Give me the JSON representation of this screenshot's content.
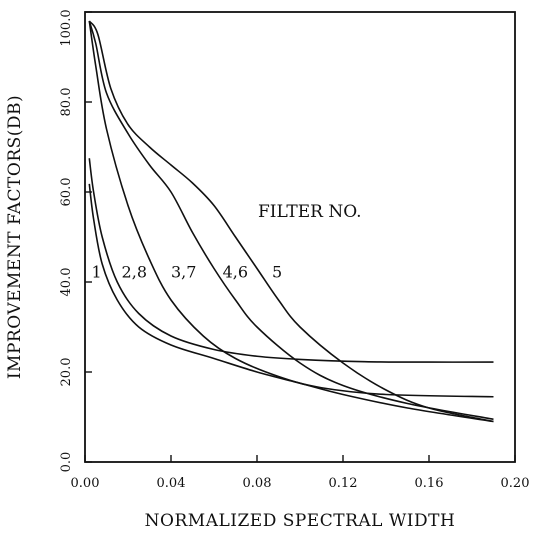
{
  "chart_data": {
    "type": "line",
    "title": "",
    "xlabel": "NORMALIZED SPECTRAL WIDTH",
    "ylabel": "IMPROVEMENT FACTORS(DB)",
    "xlim": [
      0.0,
      0.2
    ],
    "ylim": [
      0.0,
      100.0
    ],
    "x_ticks": [
      "0.00",
      "0.04",
      "0.08",
      "0.12",
      "0.16",
      "0.20"
    ],
    "x_tick_values": [
      0.0,
      0.04,
      0.08,
      0.12,
      0.16,
      0.2
    ],
    "y_ticks": [
      "0.0",
      "20.0",
      "40.0",
      "60.0",
      "80.0",
      "100.0"
    ],
    "y_tick_values": [
      0,
      20,
      40,
      60,
      80,
      100
    ],
    "grid": false,
    "annotation": "FILTER NO.",
    "curve_labels": [
      {
        "text": "1",
        "x": 0.003,
        "y": 41.0
      },
      {
        "text": "2,8",
        "x": 0.017,
        "y": 41.0
      },
      {
        "text": "3,7",
        "x": 0.04,
        "y": 41.0
      },
      {
        "text": "4,6",
        "x": 0.064,
        "y": 41.0
      },
      {
        "text": "5",
        "x": 0.087,
        "y": 41.0
      }
    ],
    "series": [
      {
        "x": [
          0.002,
          0.004,
          0.008,
          0.015,
          0.025,
          0.04,
          0.06,
          0.08,
          0.1,
          0.12,
          0.15,
          0.19
        ],
        "y": [
          61.8,
          54,
          44,
          36,
          30,
          26,
          23,
          20,
          17.5,
          15,
          12,
          9
        ]
      },
      {
        "x": [
          0.002,
          0.004,
          0.008,
          0.015,
          0.025,
          0.04,
          0.06,
          0.08,
          0.1,
          0.13,
          0.16,
          0.19
        ],
        "y": [
          67.5,
          60,
          50,
          40,
          33,
          28,
          25,
          23.5,
          22.8,
          22.3,
          22.2,
          22.2
        ]
      },
      {
        "x": [
          0.002,
          0.005,
          0.01,
          0.02,
          0.03,
          0.04,
          0.055,
          0.07,
          0.09,
          0.11,
          0.14,
          0.19
        ],
        "y": [
          98,
          88,
          74,
          57,
          45,
          36,
          28,
          23,
          19,
          16.5,
          15,
          14.5
        ]
      },
      {
        "x": [
          0.002,
          0.005,
          0.01,
          0.02,
          0.03,
          0.04,
          0.05,
          0.06,
          0.07,
          0.08,
          0.1,
          0.12,
          0.15,
          0.19
        ],
        "y": [
          98,
          93,
          82,
          73,
          66,
          60,
          51,
          43,
          36,
          30,
          22,
          17,
          13,
          9.5
        ]
      },
      {
        "x": [
          0.002,
          0.006,
          0.012,
          0.02,
          0.03,
          0.04,
          0.05,
          0.06,
          0.07,
          0.08,
          0.09,
          0.1,
          0.12,
          0.14,
          0.16,
          0.19
        ],
        "y": [
          98,
          95,
          83,
          75,
          70,
          66,
          62,
          57,
          50,
          43,
          36,
          30,
          22,
          16,
          12,
          9
        ]
      }
    ]
  }
}
